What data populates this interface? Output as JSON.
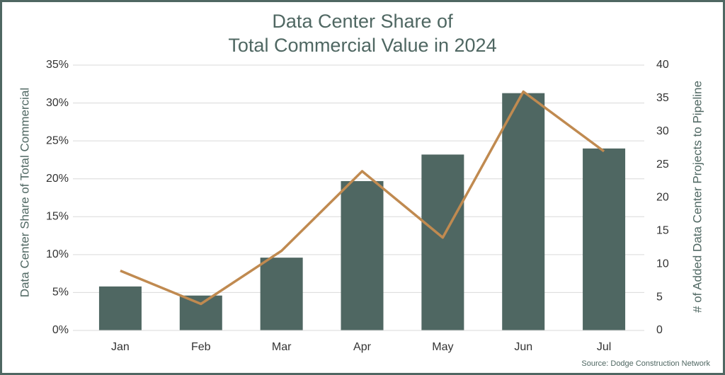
{
  "chart_data": {
    "type": "combo",
    "title": [
      "Data Center Share of",
      "Total Commercial Value in 2024"
    ],
    "y_label": "Data Center Share of Total Commercial",
    "y2_label": "# of Added Data Center Projects to Pipeline",
    "source": "Source: Dodge Construction Network",
    "categories": [
      "Jan",
      "Feb",
      "Mar",
      "Apr",
      "May",
      "Jun",
      "Jul"
    ],
    "series": [
      {
        "type": "bar",
        "color": "#4f6762",
        "values": [
          5.8,
          4.6,
          9.6,
          19.7,
          23.2,
          31.3,
          24.0
        ]
      },
      {
        "type": "line",
        "axis": "y2",
        "color": "#c08a50",
        "values": [
          9,
          4,
          12,
          24,
          14,
          36,
          27
        ]
      }
    ],
    "ylim": [
      0,
      35
    ],
    "yticks": [
      {
        "value": 0,
        "label": "0%"
      },
      {
        "value": 5,
        "label": "5%"
      },
      {
        "value": 10,
        "label": "10%"
      },
      {
        "value": 15,
        "label": "15%"
      },
      {
        "value": 20,
        "label": "20%"
      },
      {
        "value": 25,
        "label": "25%"
      },
      {
        "value": 30,
        "label": "30%"
      },
      {
        "value": 35,
        "label": "35%"
      }
    ],
    "y2lim": [
      0,
      40
    ],
    "y2ticks": [
      0,
      5,
      10,
      15,
      20,
      25,
      30,
      35,
      40
    ],
    "grid": true
  }
}
